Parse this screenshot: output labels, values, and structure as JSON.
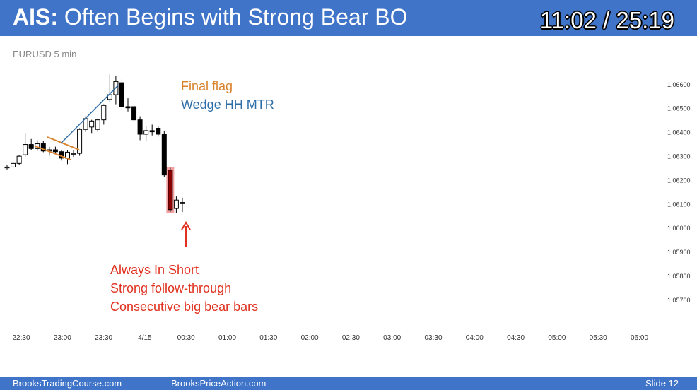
{
  "header": {
    "title_strong": "AIS:",
    "title_rest": " Often Begins with Strong Bear BO",
    "timer": "11:02 / 25:19"
  },
  "chart": {
    "symbol": "EURUSD 5 min"
  },
  "annotations": {
    "final_flag": "Final flag",
    "wedge": "Wedge HH MTR",
    "red_lines": [
      "Always In Short",
      "Strong follow-through",
      "Consecutive big bear bars"
    ]
  },
  "footer": {
    "left": "BrooksTradingCourse.com",
    "center": "BrooksPriceAction.com",
    "right": "Slide  12"
  },
  "colors": {
    "header_bg": "#3f74c9",
    "bull_body": "#ffffff",
    "bear_body": "#000000",
    "highlight": "#f08080",
    "final_flag_line": "#d9822b",
    "wedge_line": "#2e6ea8",
    "arrow": "#e0301e"
  },
  "chart_data": {
    "type": "candlestick",
    "title": "EURUSD 5 min",
    "y_ticks": [
      "1.06600",
      "1.06500",
      "1.06400",
      "1.06300",
      "1.06200",
      "1.06100",
      "1.06000",
      "1.05900",
      "1.05800",
      "1.05700"
    ],
    "ylim": [
      1.0567,
      1.0663
    ],
    "x_ticks": [
      "22:30",
      "23:00",
      "23:30",
      "4/15",
      "00:30",
      "01:00",
      "01:30",
      "02:00",
      "02:30",
      "03:00",
      "03:30",
      "04:00",
      "04:30",
      "05:00",
      "05:30",
      "06:00"
    ],
    "candles": [
      {
        "o": 1.06253,
        "h": 1.06263,
        "l": 1.06243,
        "c": 1.06253
      },
      {
        "o": 1.06253,
        "h": 1.06274,
        "l": 1.06248,
        "c": 1.06268
      },
      {
        "o": 1.06268,
        "h": 1.06304,
        "l": 1.06263,
        "c": 1.06298
      },
      {
        "o": 1.06304,
        "h": 1.06395,
        "l": 1.06295,
        "c": 1.06347
      },
      {
        "o": 1.06347,
        "h": 1.0637,
        "l": 1.06325,
        "c": 1.0633
      },
      {
        "o": 1.0633,
        "h": 1.06365,
        "l": 1.0632,
        "c": 1.0635
      },
      {
        "o": 1.0635,
        "h": 1.06362,
        "l": 1.06315,
        "c": 1.0632
      },
      {
        "o": 1.0632,
        "h": 1.06337,
        "l": 1.063,
        "c": 1.06325
      },
      {
        "o": 1.06325,
        "h": 1.06338,
        "l": 1.0631,
        "c": 1.06317
      },
      {
        "o": 1.06317,
        "h": 1.06322,
        "l": 1.0628,
        "c": 1.0629
      },
      {
        "o": 1.0629,
        "h": 1.06325,
        "l": 1.06265,
        "c": 1.06315
      },
      {
        "o": 1.0631,
        "h": 1.06325,
        "l": 1.06295,
        "c": 1.0631
      },
      {
        "o": 1.0631,
        "h": 1.06415,
        "l": 1.063,
        "c": 1.0641
      },
      {
        "o": 1.0641,
        "h": 1.06465,
        "l": 1.064,
        "c": 1.06455
      },
      {
        "o": 1.0642,
        "h": 1.0645,
        "l": 1.06395,
        "c": 1.06445
      },
      {
        "o": 1.0641,
        "h": 1.06455,
        "l": 1.064,
        "c": 1.0645
      },
      {
        "o": 1.0645,
        "h": 1.06515,
        "l": 1.0643,
        "c": 1.0651
      },
      {
        "o": 1.06535,
        "h": 1.0664,
        "l": 1.06525,
        "c": 1.06555
      },
      {
        "o": 1.06555,
        "h": 1.06635,
        "l": 1.06515,
        "c": 1.0661
      },
      {
        "o": 1.06605,
        "h": 1.0662,
        "l": 1.0649,
        "c": 1.06505
      },
      {
        "o": 1.06505,
        "h": 1.0654,
        "l": 1.06485,
        "c": 1.065
      },
      {
        "o": 1.06505,
        "h": 1.06515,
        "l": 1.0644,
        "c": 1.0645
      },
      {
        "o": 1.0645,
        "h": 1.06465,
        "l": 1.06365,
        "c": 1.0639
      },
      {
        "o": 1.0639,
        "h": 1.06425,
        "l": 1.0636,
        "c": 1.06405
      },
      {
        "o": 1.06405,
        "h": 1.0643,
        "l": 1.06385,
        "c": 1.064
      },
      {
        "o": 1.06415,
        "h": 1.06425,
        "l": 1.0638,
        "c": 1.0639
      },
      {
        "o": 1.0639,
        "h": 1.06405,
        "l": 1.0621,
        "c": 1.0622
      },
      {
        "o": 1.0624,
        "h": 1.0625,
        "l": 1.06065,
        "c": 1.06075
      },
      {
        "o": 1.0608,
        "h": 1.0613,
        "l": 1.0606,
        "c": 1.06115
      },
      {
        "o": 1.06105,
        "h": 1.06125,
        "l": 1.06065,
        "c": 1.061
      }
    ]
  }
}
